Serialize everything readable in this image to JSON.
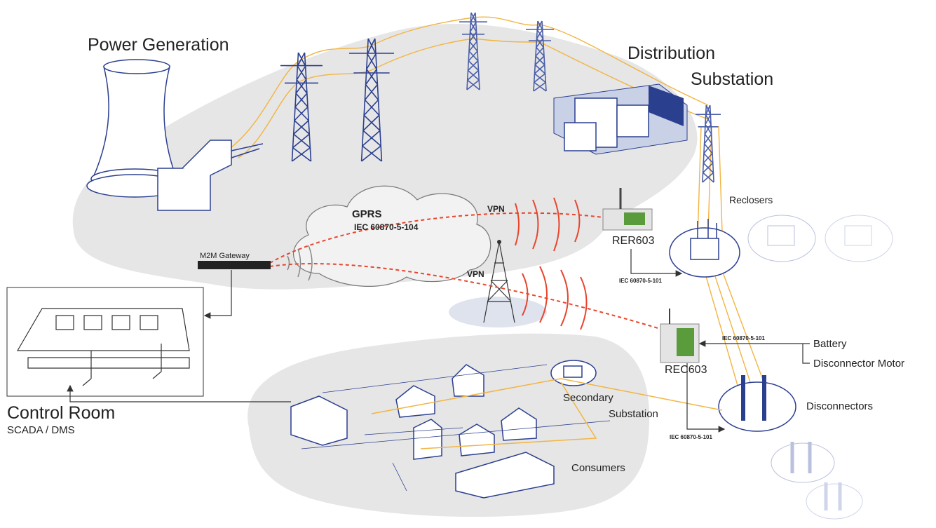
{
  "power_generation": "Power Generation",
  "distribution_substation": {
    "line1": "Distribution",
    "line2": "Substation"
  },
  "gprs": {
    "title": "GPRS",
    "protocol": "IEC 60870-5-104"
  },
  "vpn_links": [
    "VPN",
    "VPN"
  ],
  "m2m_gateway": "M2M Gateway",
  "rer603": {
    "label": "RER603",
    "protocol": "IEC 60870-5-101"
  },
  "reclosers": "Reclosers",
  "rec603": {
    "label": "REC603",
    "protocol_in": "IEC 60870-5-101",
    "protocol_out": "IEC 60870-5-101"
  },
  "inputs": [
    "Battery",
    "Disconnector Motor"
  ],
  "disconnectors": "Disconnectors",
  "secondary_substation": {
    "line1": "Secondary",
    "line2": "Substation"
  },
  "consumers": "Consumers",
  "control_room": {
    "title": "Control Room",
    "subtitle": "SCADA / DMS"
  }
}
